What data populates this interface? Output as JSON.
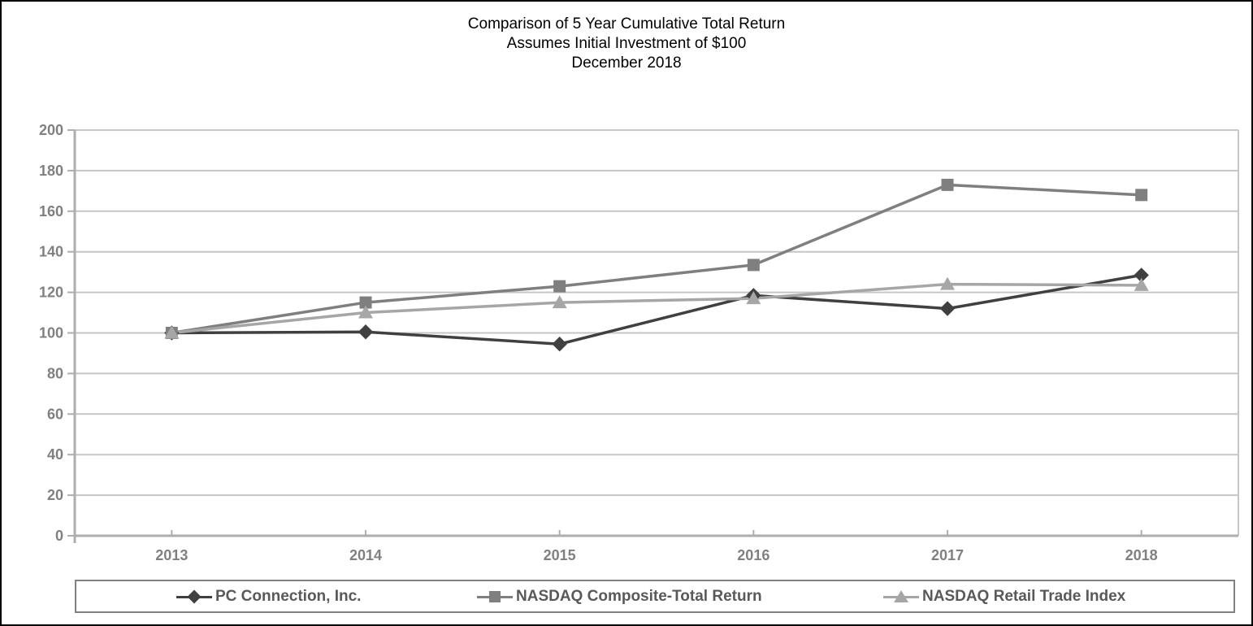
{
  "title": {
    "line1": "Comparison of 5 Year Cumulative Total Return",
    "line2": "Assumes Initial Investment of $100",
    "line3": "December 2018"
  },
  "chart_data": {
    "type": "line",
    "categories": [
      "2013",
      "2014",
      "2015",
      "2016",
      "2017",
      "2018"
    ],
    "series": [
      {
        "name": "PC Connection, Inc.",
        "marker": "diamond",
        "color": "#404040",
        "values": [
          100,
          100.5,
          94.5,
          118.5,
          112,
          128.5
        ]
      },
      {
        "name": "NASDAQ Composite-Total Return",
        "marker": "square",
        "color": "#7f7f7f",
        "values": [
          100,
          115,
          123,
          133.5,
          173,
          168
        ]
      },
      {
        "name": "NASDAQ Retail Trade Index",
        "marker": "triangle",
        "color": "#a6a6a6",
        "values": [
          100,
          110,
          115,
          117,
          124,
          123.5
        ]
      }
    ],
    "ylim": [
      0,
      200
    ],
    "ytick_step": 20,
    "grid": true,
    "legend_position": "bottom",
    "colors": {
      "gridline": "#c6c6c6",
      "axis": "#aeaeae",
      "tick_label": "#808080",
      "legend_text": "#595959",
      "legend_border": "#808080"
    }
  }
}
